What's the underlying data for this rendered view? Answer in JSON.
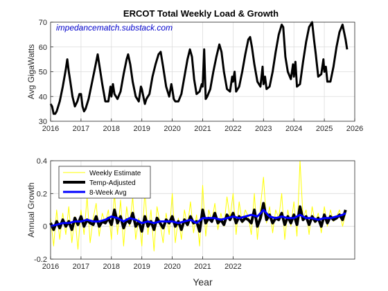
{
  "colors": {
    "background": "#ffffff",
    "axes": "#262626",
    "grid": "#dcdcdc",
    "load_line": "#000000",
    "weekly_estimate": "#ffff00",
    "temp_adjusted": "#000000",
    "avg_8week": "#0000ff",
    "watermark": "#0000cc"
  },
  "chart_data": [
    {
      "type": "line",
      "title": "ERCOT Total Weekly Load & Growth",
      "watermark": "impedancematch.substack.com",
      "xlabel": "",
      "ylabel": "Avg GigaWatts",
      "xlim": [
        2016,
        2026
      ],
      "ylim": [
        30,
        70
      ],
      "x_ticks": [
        "2016",
        "2017",
        "2018",
        "2019",
        "2020",
        "2021",
        "2022",
        "2023",
        "2024",
        "2025",
        "2026"
      ],
      "y_ticks": [
        "30",
        "40",
        "50",
        "60",
        "70"
      ],
      "grid": true,
      "series": [
        {
          "name": "",
          "x": [
            2016.0,
            2016.05,
            2016.1,
            2016.15,
            2016.2,
            2016.3,
            2016.4,
            2016.5,
            2016.55,
            2016.6,
            2016.65,
            2016.72,
            2016.8,
            2016.88,
            2016.95,
            2017.0,
            2017.05,
            2017.1,
            2017.15,
            2017.25,
            2017.35,
            2017.45,
            2017.55,
            2017.6,
            2017.7,
            2017.8,
            2017.9,
            2017.97,
            2018.0,
            2018.05,
            2018.1,
            2018.2,
            2018.3,
            2018.4,
            2018.5,
            2018.55,
            2018.62,
            2018.7,
            2018.8,
            2018.9,
            2018.97,
            2019.0,
            2019.05,
            2019.1,
            2019.15,
            2019.25,
            2019.35,
            2019.45,
            2019.55,
            2019.62,
            2019.7,
            2019.8,
            2019.9,
            2019.97,
            2020.0,
            2020.05,
            2020.1,
            2020.2,
            2020.3,
            2020.4,
            2020.5,
            2020.58,
            2020.65,
            2020.72,
            2020.8,
            2020.9,
            2020.97,
            2021.0,
            2021.05,
            2021.1,
            2021.15,
            2021.25,
            2021.35,
            2021.45,
            2021.55,
            2021.62,
            2021.7,
            2021.8,
            2021.9,
            2021.97,
            2022.0,
            2022.05,
            2022.1,
            2022.2,
            2022.3,
            2022.4,
            2022.5,
            2022.56,
            2022.62,
            2022.7,
            2022.8,
            2022.9,
            2022.97,
            2023.0,
            2023.05,
            2023.1,
            2023.2,
            2023.3,
            2023.4,
            2023.5,
            2023.6,
            2023.65,
            2023.72,
            2023.8,
            2023.9,
            2023.97,
            2024.0,
            2024.05,
            2024.1,
            2024.2,
            2024.3,
            2024.4,
            2024.5,
            2024.6,
            2024.66,
            2024.72,
            2024.8,
            2024.9,
            2024.97,
            2025.0,
            2025.05,
            2025.1,
            2025.2,
            2025.3,
            2025.4,
            2025.5,
            2025.6,
            2025.65,
            2025.7,
            2025.75
          ],
          "y": [
            37,
            36,
            33,
            33,
            34,
            38,
            44,
            51,
            55,
            50,
            46,
            40,
            36,
            38,
            41,
            41,
            36,
            34,
            35,
            39,
            45,
            51,
            57,
            53,
            45,
            38,
            38,
            44,
            40,
            45,
            41,
            39,
            42,
            49,
            55,
            57,
            53,
            46,
            40,
            38,
            44,
            43,
            40,
            37,
            39,
            41,
            48,
            53,
            57,
            58,
            52,
            44,
            40,
            45,
            43,
            39,
            38,
            38,
            41,
            48,
            55,
            59,
            56,
            47,
            41,
            42,
            45,
            44,
            59,
            39,
            40,
            43,
            50,
            56,
            61,
            58,
            50,
            43,
            42,
            48,
            46,
            50,
            42,
            44,
            50,
            57,
            63,
            64,
            60,
            53,
            46,
            44,
            52,
            45,
            48,
            43,
            44,
            50,
            58,
            65,
            69,
            68,
            56,
            50,
            47,
            53,
            48,
            54,
            44,
            45,
            54,
            62,
            68,
            70,
            63,
            57,
            48,
            49,
            55,
            50,
            52,
            46,
            46,
            52,
            60,
            66,
            69,
            66,
            63,
            59
          ]
        }
      ]
    },
    {
      "type": "line",
      "title": "",
      "xlabel": "Year",
      "ylabel": "Annual Growth",
      "xlim": [
        2016,
        2026
      ],
      "ylim": [
        -0.2,
        0.4
      ],
      "x_ticks": [
        "2016",
        "2017",
        "2018",
        "2019",
        "2020",
        "2021",
        "2022"
      ],
      "y_ticks": [
        "-0.2",
        "0",
        "0.2",
        "0.4"
      ],
      "grid": true,
      "legend": "top-left",
      "series": [
        {
          "name": "Weekly Estimate",
          "x": [
            2016.0,
            2016.1,
            2016.2,
            2016.3,
            2016.4,
            2016.5,
            2016.6,
            2016.7,
            2016.8,
            2016.9,
            2017.0,
            2017.1,
            2017.2,
            2017.3,
            2017.4,
            2017.5,
            2017.6,
            2017.7,
            2017.8,
            2017.9,
            2018.0,
            2018.1,
            2018.2,
            2018.3,
            2018.4,
            2018.5,
            2018.6,
            2018.7,
            2018.8,
            2018.9,
            2019.0,
            2019.1,
            2019.2,
            2019.3,
            2019.4,
            2019.5,
            2019.6,
            2019.7,
            2019.8,
            2019.9,
            2020.0,
            2020.1,
            2020.2,
            2020.3,
            2020.4,
            2020.5,
            2020.6,
            2020.7,
            2020.8,
            2020.9,
            2021.0,
            2021.1,
            2021.2,
            2021.3,
            2021.4,
            2021.5,
            2021.6,
            2021.7,
            2021.8,
            2021.9,
            2022.0,
            2022.1,
            2022.2,
            2022.3,
            2022.4,
            2022.5,
            2022.6,
            2022.7,
            2022.8,
            2022.9,
            2023.0,
            2023.1,
            2023.2,
            2023.3,
            2023.4,
            2023.5,
            2023.6,
            2023.7,
            2023.8,
            2023.9,
            2024.0,
            2024.1,
            2024.2,
            2024.3,
            2024.4,
            2024.5,
            2024.6,
            2024.7,
            2024.8,
            2024.9,
            2025.0,
            2025.1,
            2025.2,
            2025.3,
            2025.4,
            2025.5,
            2025.6,
            2025.7
          ],
          "y": [
            0.05,
            -0.12,
            0.1,
            -0.08,
            0.08,
            -0.05,
            0.12,
            -0.1,
            0.06,
            -0.14,
            0.1,
            -0.05,
            0.18,
            -0.1,
            0.05,
            0.14,
            -0.06,
            0.08,
            0.02,
            0.1,
            -0.08,
            0.2,
            -0.05,
            0.16,
            -0.12,
            0.12,
            0.0,
            0.18,
            -0.08,
            0.05,
            -0.12,
            0.22,
            -0.05,
            0.1,
            -0.15,
            0.12,
            0.02,
            -0.1,
            0.08,
            -0.05,
            0.2,
            -0.1,
            0.05,
            -0.08,
            0.1,
            0.0,
            0.15,
            -0.04,
            0.07,
            -0.12,
            0.25,
            -0.06,
            0.1,
            0.03,
            0.14,
            -0.02,
            0.08,
            0.0,
            0.18,
            0.05,
            0.2,
            -0.05,
            0.15,
            0.02,
            0.1,
            0.06,
            -0.05,
            0.2,
            -0.08,
            0.12,
            0.3,
            0.02,
            0.12,
            -0.04,
            0.1,
            0.05,
            0.2,
            -0.08,
            0.1,
            0.0,
            0.15,
            -0.06,
            0.4,
            0.05,
            0.1,
            -0.05,
            0.12,
            0.02,
            0.08,
            -0.04,
            0.12,
            0.0,
            0.1,
            0.03,
            0.06,
            0.1,
            0.0,
            0.08
          ]
        },
        {
          "name": "Temp-Adjusted",
          "x": [
            2016.0,
            2016.1,
            2016.2,
            2016.3,
            2016.4,
            2016.5,
            2016.6,
            2016.7,
            2016.8,
            2016.9,
            2017.0,
            2017.1,
            2017.2,
            2017.3,
            2017.4,
            2017.5,
            2017.6,
            2017.7,
            2017.8,
            2017.9,
            2018.0,
            2018.1,
            2018.2,
            2018.3,
            2018.4,
            2018.5,
            2018.6,
            2018.7,
            2018.8,
            2018.9,
            2019.0,
            2019.1,
            2019.2,
            2019.3,
            2019.4,
            2019.5,
            2019.6,
            2019.7,
            2019.8,
            2019.9,
            2020.0,
            2020.1,
            2020.2,
            2020.3,
            2020.4,
            2020.5,
            2020.6,
            2020.7,
            2020.8,
            2020.9,
            2021.0,
            2021.1,
            2021.2,
            2021.3,
            2021.4,
            2021.5,
            2021.6,
            2021.7,
            2021.8,
            2021.9,
            2022.0,
            2022.1,
            2022.2,
            2022.3,
            2022.4,
            2022.5,
            2022.6,
            2022.7,
            2022.8,
            2022.9,
            2023.0,
            2023.1,
            2023.2,
            2023.3,
            2023.4,
            2023.5,
            2023.6,
            2023.7,
            2023.8,
            2023.9,
            2024.0,
            2024.1,
            2024.2,
            2024.3,
            2024.4,
            2024.5,
            2024.6,
            2024.7,
            2024.8,
            2024.9,
            2025.0,
            2025.1,
            2025.2,
            2025.3,
            2025.4,
            2025.5,
            2025.6,
            2025.7
          ],
          "y": [
            0.02,
            -0.02,
            0.03,
            -0.01,
            0.04,
            0.0,
            0.03,
            -0.02,
            0.05,
            0.01,
            0.06,
            0.0,
            0.04,
            0.02,
            0.01,
            0.06,
            0.0,
            0.03,
            0.02,
            0.05,
            0.01,
            0.1,
            0.02,
            0.06,
            -0.01,
            0.04,
            0.02,
            0.08,
            0.0,
            0.03,
            -0.03,
            0.06,
            0.0,
            0.03,
            -0.02,
            0.05,
            0.02,
            -0.01,
            0.04,
            0.02,
            0.06,
            0.0,
            0.03,
            -0.02,
            0.04,
            0.01,
            0.06,
            0.02,
            0.03,
            -0.03,
            0.1,
            0.02,
            0.05,
            0.03,
            0.08,
            0.02,
            0.04,
            0.01,
            0.07,
            0.04,
            0.08,
            0.02,
            0.06,
            0.03,
            0.05,
            0.04,
            0.02,
            0.1,
            0.0,
            0.05,
            0.14,
            0.04,
            0.07,
            0.02,
            0.05,
            0.04,
            0.08,
            0.01,
            0.06,
            0.02,
            0.07,
            0.01,
            0.12,
            0.04,
            0.06,
            0.01,
            0.06,
            0.03,
            0.05,
            0.0,
            0.07,
            0.02,
            0.06,
            0.04,
            0.05,
            0.07,
            0.04,
            0.1
          ]
        },
        {
          "name": "8-Week Avg",
          "x": [
            2016.0,
            2016.2,
            2016.4,
            2016.6,
            2016.8,
            2017.0,
            2017.2,
            2017.4,
            2017.6,
            2017.8,
            2018.0,
            2018.2,
            2018.4,
            2018.6,
            2018.8,
            2019.0,
            2019.2,
            2019.4,
            2019.6,
            2019.8,
            2020.0,
            2020.2,
            2020.4,
            2020.6,
            2020.8,
            2021.0,
            2021.2,
            2021.4,
            2021.6,
            2021.8,
            2022.0,
            2022.2,
            2022.4,
            2022.6,
            2022.8,
            2023.0,
            2023.2,
            2023.4,
            2023.6,
            2023.8,
            2024.0,
            2024.2,
            2024.4,
            2024.6,
            2024.8,
            2025.0,
            2025.2,
            2025.4,
            2025.6,
            2025.7
          ],
          "y": [
            0.0,
            0.01,
            0.02,
            0.02,
            0.03,
            0.03,
            0.04,
            0.03,
            0.03,
            0.04,
            0.06,
            0.05,
            0.03,
            0.05,
            0.04,
            0.02,
            0.03,
            0.02,
            0.03,
            0.03,
            0.03,
            0.02,
            0.03,
            0.04,
            0.02,
            0.05,
            0.05,
            0.05,
            0.04,
            0.05,
            0.06,
            0.05,
            0.06,
            0.07,
            0.06,
            0.1,
            0.06,
            0.05,
            0.06,
            0.05,
            0.05,
            0.07,
            0.05,
            0.05,
            0.04,
            0.05,
            0.05,
            0.06,
            0.07,
            0.08
          ]
        }
      ]
    }
  ]
}
